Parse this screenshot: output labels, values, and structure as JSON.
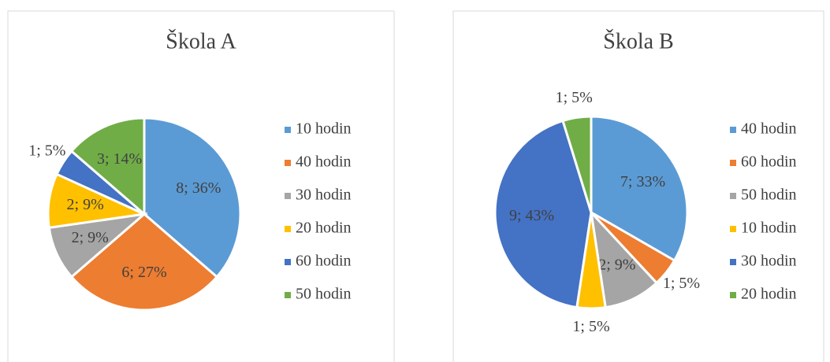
{
  "chart_data": [
    {
      "type": "pie",
      "title": "Škola A",
      "categories": [
        "10 hodin",
        "40 hodin",
        "30 hodin",
        "20 hodin",
        "60 hodin",
        "50 hodin"
      ],
      "values": [
        8,
        6,
        2,
        2,
        1,
        3
      ],
      "value_labels": [
        "8; 36%",
        "6; 27%",
        "2; 9%",
        "2; 9%",
        "1; 5%",
        "3; 14%"
      ],
      "colors": [
        "#5b9bd5",
        "#ed7d31",
        "#a5a5a5",
        "#ffc000",
        "#4472c4",
        "#70ad47"
      ],
      "legend": "right"
    },
    {
      "type": "pie",
      "title": "Škola B",
      "categories": [
        "40 hodin",
        "60 hodin",
        "50 hodin",
        "10 hodin",
        "30 hodin",
        "20 hodin"
      ],
      "values": [
        7,
        1,
        2,
        1,
        9,
        1
      ],
      "value_labels": [
        "7; 33%",
        "1; 5%",
        "2; 9%",
        "1; 5%",
        "9; 43%",
        "1; 5%"
      ],
      "colors": [
        "#5b9bd5",
        "#ed7d31",
        "#a5a5a5",
        "#ffc000",
        "#4472c4",
        "#70ad47"
      ],
      "legend": "right"
    }
  ]
}
